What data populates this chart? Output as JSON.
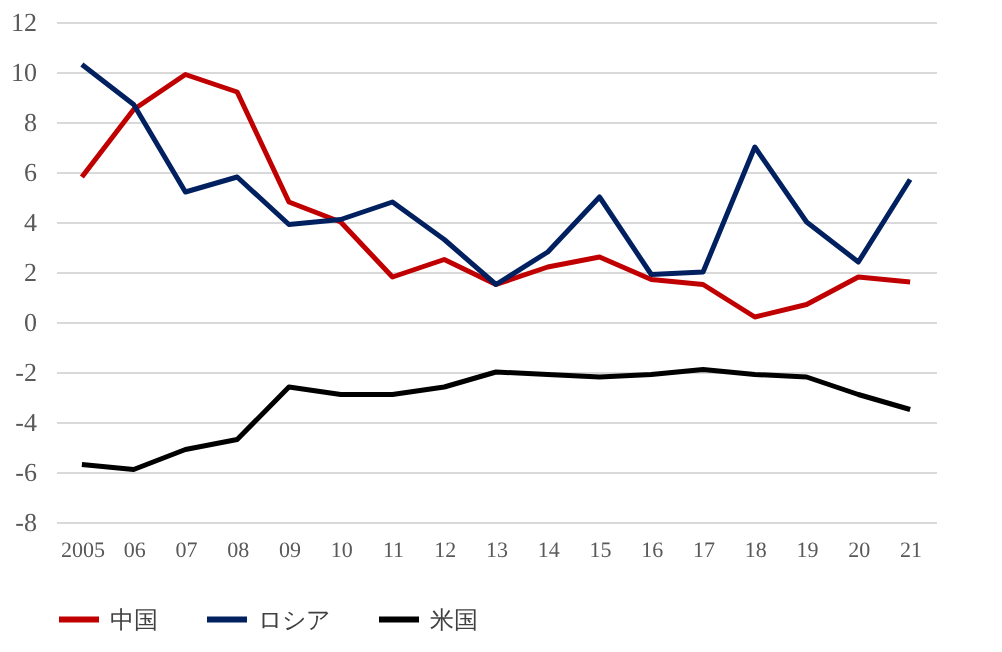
{
  "chart_data": {
    "type": "line",
    "categories": [
      "2005",
      "06",
      "07",
      "08",
      "09",
      "10",
      "11",
      "12",
      "13",
      "14",
      "15",
      "16",
      "17",
      "18",
      "19",
      "20",
      "21"
    ],
    "series": [
      {
        "name": "中国",
        "color": "#c00000",
        "values": [
          5.8,
          8.5,
          9.9,
          9.2,
          4.8,
          4.0,
          1.8,
          2.5,
          1.5,
          2.2,
          2.6,
          1.7,
          1.5,
          0.2,
          0.7,
          1.8,
          1.6
        ]
      },
      {
        "name": "ロシア",
        "color": "#002060",
        "values": [
          10.3,
          8.7,
          5.2,
          5.8,
          3.9,
          4.1,
          4.8,
          3.3,
          1.5,
          2.8,
          5.0,
          1.9,
          2.0,
          7.0,
          4.0,
          2.4,
          5.7
        ]
      },
      {
        "name": "米国",
        "color": "#000000",
        "values": [
          -5.7,
          -5.9,
          -5.1,
          -4.7,
          -2.6,
          -2.9,
          -2.9,
          -2.6,
          -2.0,
          -2.1,
          -2.2,
          -2.1,
          -1.9,
          -2.1,
          -2.2,
          -2.9,
          -3.5
        ]
      }
    ],
    "ylim": [
      -8,
      12
    ],
    "yticks": [
      -8,
      -6,
      -4,
      -2,
      0,
      2,
      4,
      6,
      8,
      10,
      12
    ],
    "grid": "y",
    "legend": "bottom",
    "line_style": "solid",
    "marker": "none"
  }
}
